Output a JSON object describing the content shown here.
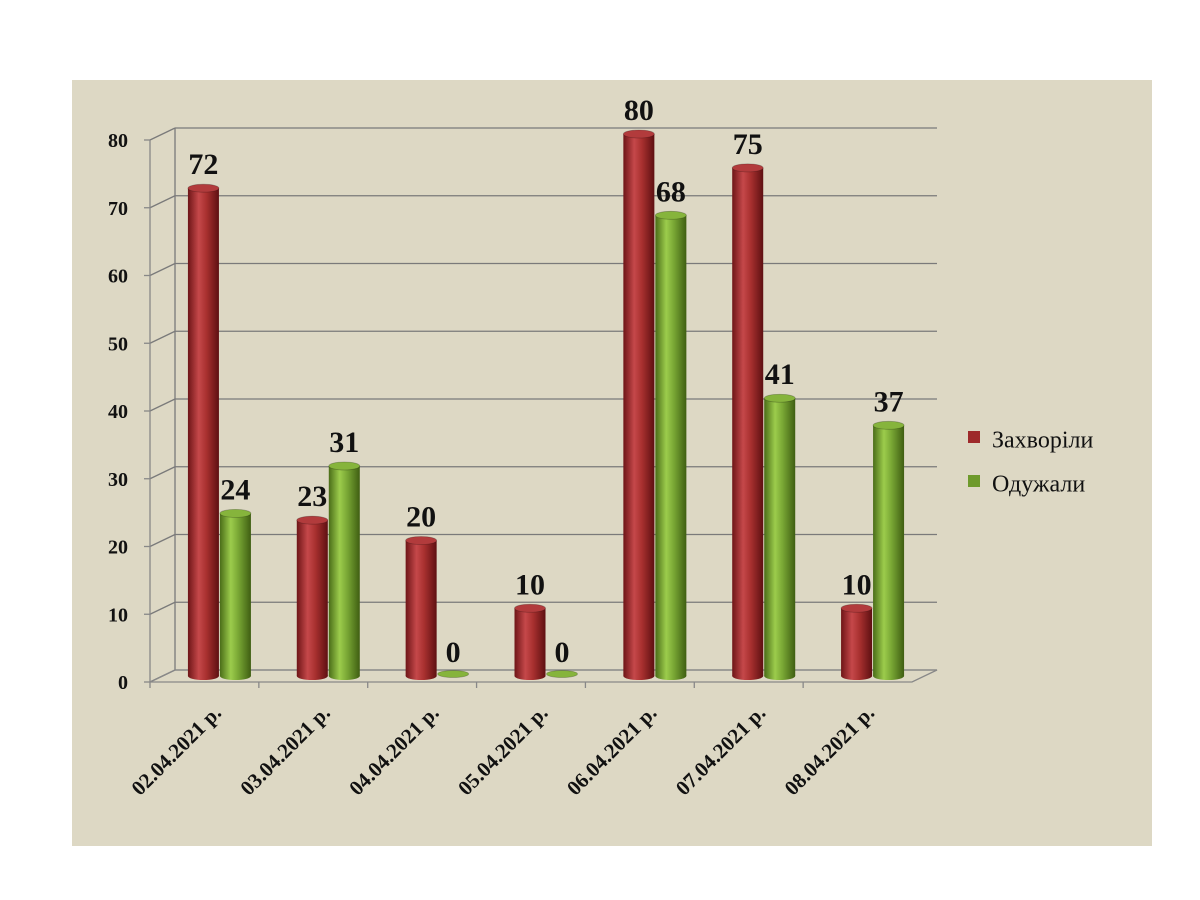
{
  "chart_data": {
    "type": "bar",
    "categories": [
      "02.04.2021 р.",
      "03.04.2021 р.",
      "04.04.2021 р.",
      "05.04.2021 р.",
      "06.04.2021 р.",
      "07.04.2021 р.",
      "08.04.2021 р."
    ],
    "series": [
      {
        "name": "Захворіли",
        "values": [
          72,
          23,
          20,
          10,
          80,
          75,
          10
        ],
        "color": "#9e2a2b"
      },
      {
        "name": "Одужали",
        "values": [
          24,
          31,
          0,
          0,
          68,
          41,
          37
        ],
        "color": "#6e9a2c"
      }
    ],
    "y_ticks": [
      "0",
      "10",
      "20",
      "30",
      "40",
      "50",
      "60",
      "70",
      "80"
    ],
    "ylim": [
      0,
      80
    ],
    "grid": true,
    "legend_position": "right",
    "title": "",
    "xlabel": "",
    "ylabel": "",
    "style": "3d-cylinder"
  }
}
